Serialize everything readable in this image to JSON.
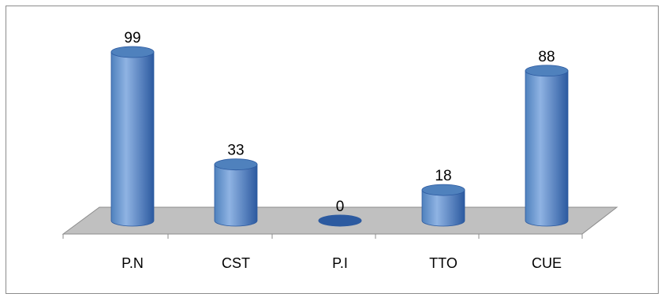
{
  "chart_data": {
    "type": "bar",
    "style": "3d-cylinder",
    "categories": [
      "P.N",
      "CST",
      "P.I",
      "TTO",
      "CUE"
    ],
    "values": [
      99,
      33,
      0,
      18,
      88
    ],
    "data_labels": [
      "99",
      "33",
      "0",
      "18",
      "88"
    ],
    "title": "",
    "xlabel": "",
    "ylabel": "",
    "ylim": [
      0,
      99
    ],
    "grid": false,
    "legend": "none",
    "colors": {
      "bar": "#4f81bd",
      "bar_dark": "#2c5aa0",
      "bar_light": "#8fb3e3",
      "floor": "#c0c0c0",
      "floor_edge": "#8c8c8c",
      "frame": "#8c8c8c"
    }
  }
}
